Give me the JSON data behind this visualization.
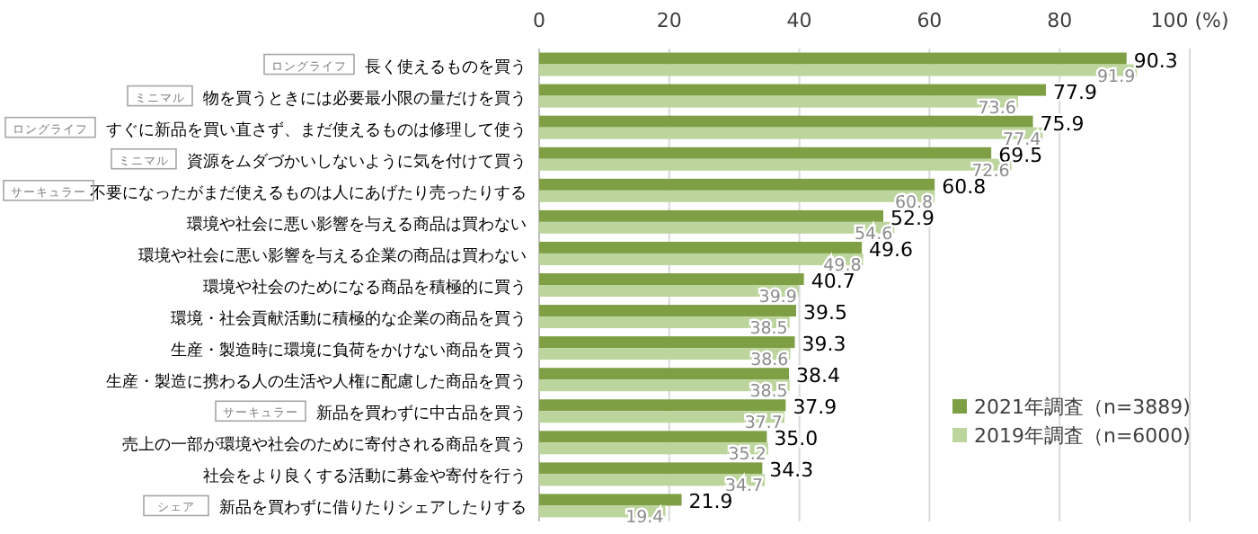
{
  "chart_data": {
    "type": "bar",
    "orientation": "horizontal",
    "categories": [
      "長く使えるものを買う",
      "物を買うときには必要最小限の量だけを買う",
      "すぐに新品を買い直さず、まだ使えるものは修理して使う",
      "資源をムダづかいしないように気を付けて買う",
      "不要になったがまだ使えるものは人にあげたり売ったりする",
      "環境や社会に悪い影響を与える商品は買わない",
      "環境や社会に悪い影響を与える企業の商品は買わない",
      "環境や社会のためになる商品を積極的に買う",
      "環境・社会貢献活動に積極的な企業の商品を買う",
      "生産・製造時に環境に負荷をかけない商品を買う",
      "生産・製造に携わる人の生活や人権に配慮した商品を買う",
      "新品を買わずに中古品を買う",
      "売上の一部が環境や社会のために寄付される商品を買う",
      "社会をより良くする活動に募金や寄付を行う",
      "新品を買わずに借りたりシェアしたりする"
    ],
    "series": [
      {
        "name": "2021年調査（n=3889)",
        "color": "#7f9f45",
        "values": [
          90.3,
          77.9,
          75.9,
          69.5,
          60.8,
          52.9,
          49.6,
          40.7,
          39.5,
          39.3,
          38.4,
          37.9,
          35.0,
          34.3,
          21.9
        ],
        "value_labels": [
          "90.3",
          "77.9",
          "75.9",
          "69.5",
          "60.8",
          "52.9",
          "49.6",
          "40.7",
          "39.5",
          "39.3",
          "38.4",
          "37.9",
          "35.0",
          "34.3",
          "21.9"
        ]
      },
      {
        "name": "2019年調査（n=6000)",
        "color": "#bcd59c",
        "values": [
          91.9,
          73.6,
          77.4,
          72.6,
          60.8,
          54.6,
          49.8,
          39.9,
          38.5,
          38.6,
          38.5,
          37.7,
          35.2,
          34.7,
          19.4
        ],
        "value_labels": [
          "91.9",
          "73.6",
          "77.4",
          "72.6",
          "60.8",
          "54.6",
          "49.8",
          "39.9",
          "38.5",
          "38.6",
          "38.5",
          "37.7",
          "35.2",
          "34.7",
          "19.4"
        ]
      }
    ],
    "xlim": [
      0,
      100
    ],
    "xticks": [
      0,
      20,
      40,
      60,
      80,
      {
        "value": 100,
        "label": "100 (%)"
      }
    ],
    "grid": "x",
    "legend": "right",
    "annotations": [
      "ロングライフ",
      "ミニマル",
      "ロングライフ",
      "ミニマル",
      "サーキュラー",
      "サーキュラー",
      "シェア"
    ]
  }
}
